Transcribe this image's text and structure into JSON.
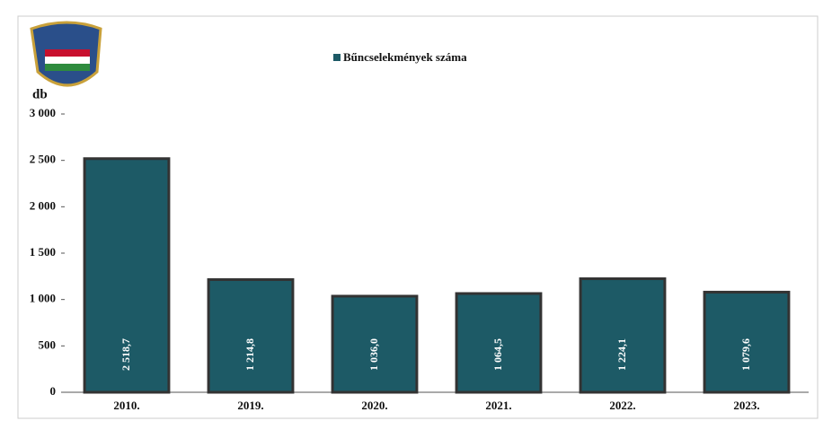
{
  "chart_data": {
    "type": "bar",
    "y_label": "db",
    "legend": "Bűncselekmények száma",
    "categories": [
      "2010.",
      "2019.",
      "2020.",
      "2021.",
      "2022.",
      "2023."
    ],
    "values": [
      2518.7,
      1214.8,
      1036.0,
      1064.5,
      1224.1,
      1079.6
    ],
    "value_labels": [
      "2 518,7",
      "1 214,8",
      "1 036,0",
      "1 064,5",
      "1 224,1",
      "1 079,6"
    ],
    "color": "#1d5a66",
    "ylim": [
      0,
      3000
    ],
    "yticks": [
      0,
      500,
      {
        "value": 1000,
        "label": "1 000"
      },
      {
        "value": 1500,
        "label": "1 500"
      },
      {
        "value": 2000,
        "label": "2 000"
      },
      {
        "value": 2500,
        "label": "2 500"
      },
      {
        "value": 3000,
        "label": "3 000"
      }
    ]
  }
}
